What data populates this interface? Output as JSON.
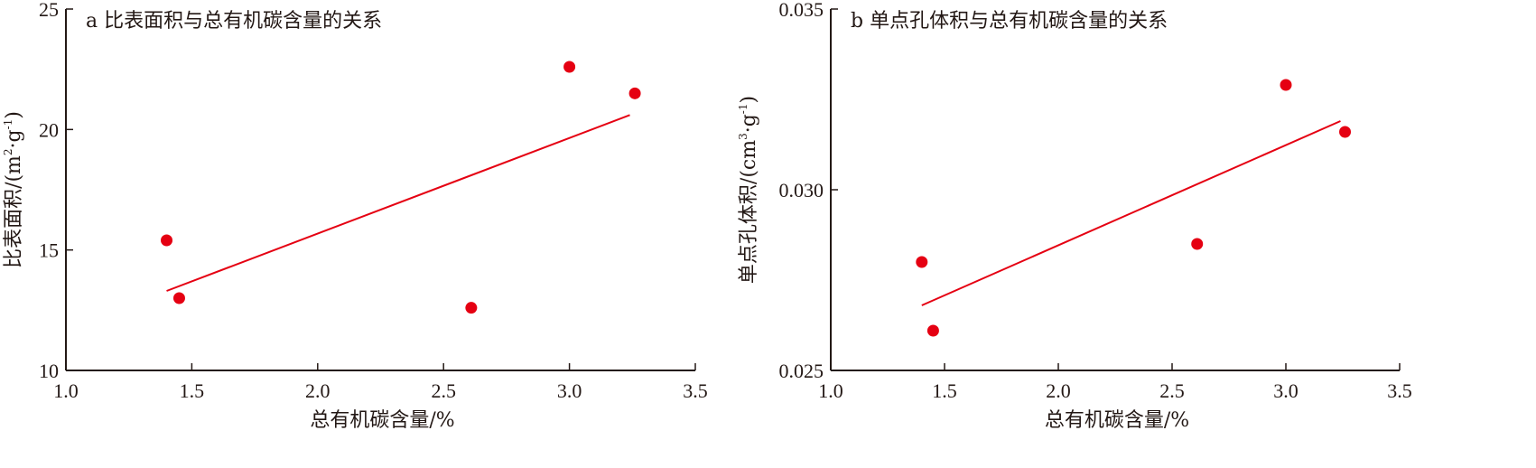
{
  "chart_data": [
    {
      "type": "scatter",
      "title": "a 比表面积与总有机碳含量的关系",
      "xlabel": "总有机碳含量/%",
      "ylabel": {
        "base": "比表面积/(m",
        "sup1": "2",
        "mid": "·g",
        "sup2": "-1",
        "end": ")"
      },
      "xlim": [
        1.0,
        3.5
      ],
      "ylim": [
        10,
        25
      ],
      "x_ticks": [
        1.0,
        1.5,
        2.0,
        2.5,
        3.0,
        3.5
      ],
      "x_tick_labels": [
        "1.0",
        "1.5",
        "2.0",
        "2.5",
        "3.0",
        "3.5"
      ],
      "y_ticks": [
        10,
        15,
        20,
        25
      ],
      "y_tick_labels": [
        "10",
        "15",
        "20",
        "25"
      ],
      "grid": false,
      "points": [
        {
          "x": 1.4,
          "y": 15.4
        },
        {
          "x": 1.45,
          "y": 13.0
        },
        {
          "x": 2.61,
          "y": 12.6
        },
        {
          "x": 3.0,
          "y": 22.6
        },
        {
          "x": 3.26,
          "y": 21.5
        }
      ],
      "trendline": {
        "x": [
          1.4,
          3.24
        ],
        "y": [
          13.3,
          20.6
        ]
      },
      "point_color": "#e50012",
      "line_color": "#e50012"
    },
    {
      "type": "scatter",
      "title": "b 单点孔体积与总有机碳含量的关系",
      "xlabel": "总有机碳含量/%",
      "ylabel": {
        "base": "单点孔体积/(cm",
        "sup1": "3",
        "mid": "·g",
        "sup2": "-1",
        "end": ")"
      },
      "xlim": [
        1.0,
        3.5
      ],
      "ylim": [
        0.025,
        0.035
      ],
      "x_ticks": [
        1.0,
        1.5,
        2.0,
        2.5,
        3.0,
        3.5
      ],
      "x_tick_labels": [
        "1.0",
        "1.5",
        "2.0",
        "2.5",
        "3.0",
        "3.5"
      ],
      "y_ticks": [
        0.025,
        0.03,
        0.035
      ],
      "y_tick_labels": [
        "0.025",
        "0.030",
        "0.035"
      ],
      "grid": false,
      "points": [
        {
          "x": 1.4,
          "y": 0.028
        },
        {
          "x": 1.45,
          "y": 0.0261
        },
        {
          "x": 2.61,
          "y": 0.0285
        },
        {
          "x": 3.0,
          "y": 0.0329
        },
        {
          "x": 3.26,
          "y": 0.0316
        }
      ],
      "trendline": {
        "x": [
          1.4,
          3.24
        ],
        "y": [
          0.0268,
          0.0319
        ]
      },
      "point_color": "#e50012",
      "line_color": "#e50012"
    }
  ]
}
